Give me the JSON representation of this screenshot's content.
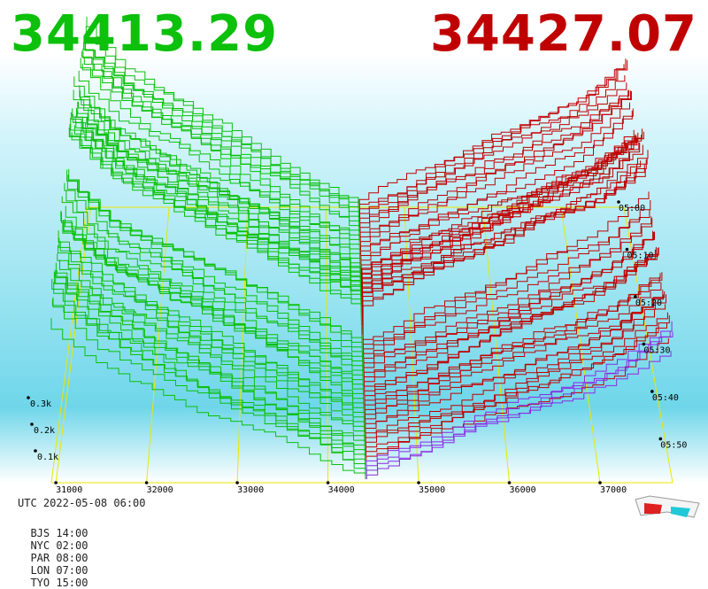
{
  "header": {
    "bid_price": "34413.29",
    "ask_price": "34427.07"
  },
  "footer": {
    "utc": "UTC 2022-05-08 06:00",
    "zones": [
      "BJS 14:00",
      "NYC 02:00",
      "PAR 08:00",
      "LON 07:00",
      "TYO 15:00"
    ]
  },
  "icons": {
    "glasses": "3d-glasses-icon"
  },
  "colors": {
    "bid": "#0cc00c",
    "ask": "#c00000",
    "grid": "#e8e800",
    "latest": "#8a2be2"
  },
  "chart_data": {
    "type": "area",
    "description": "3D order book depth over time",
    "x_ticks": [
      "31000",
      "32000",
      "33000",
      "34000",
      "35000",
      "36000",
      "37000"
    ],
    "z_ticks": [
      "0.1k",
      "0.2k",
      "0.3k"
    ],
    "time_ticks": [
      "05:00",
      "05:10",
      "05:20",
      "05:30",
      "05:40",
      "05:50"
    ],
    "bid_price": 34413.29,
    "ask_price": 34427.07,
    "xlim": [
      30950,
      37800
    ],
    "snapshots": 60
  }
}
